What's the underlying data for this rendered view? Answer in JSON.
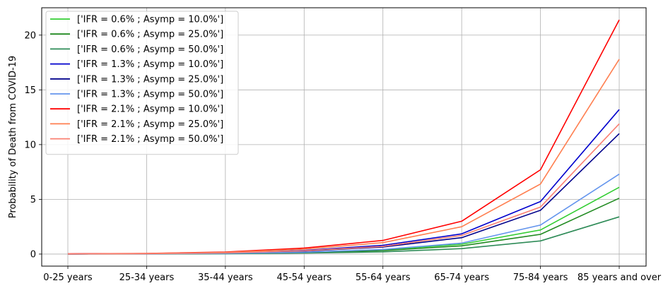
{
  "chart_data": {
    "type": "line",
    "title": "",
    "xlabel": "",
    "ylabel": "Probability of Death from COVID-19",
    "categories": [
      "0-25 years",
      "25-34 years",
      "35-44 years",
      "45-54 years",
      "55-64 years",
      "65-74 years",
      "75-84 years",
      "85 years and over"
    ],
    "ylim": [
      -1.1,
      22.5
    ],
    "yticks": [
      0,
      5,
      10,
      15,
      20
    ],
    "grid": true,
    "legend_position": "top-left",
    "series": [
      {
        "name": "['IFR = 0.6% ; Asymp = 10.0%']",
        "color": "#32cd32",
        "values": [
          0.01,
          0.02,
          0.06,
          0.16,
          0.38,
          0.9,
          2.2,
          6.1
        ]
      },
      {
        "name": "['IFR = 0.6% ; Asymp = 25.0%']",
        "color": "#228b22",
        "values": [
          0.01,
          0.02,
          0.05,
          0.13,
          0.32,
          0.75,
          1.8,
          5.1
        ]
      },
      {
        "name": "['IFR = 0.6% ; Asymp = 50.0%']",
        "color": "#2e8b57",
        "values": [
          0.0,
          0.01,
          0.03,
          0.09,
          0.2,
          0.5,
          1.2,
          3.4
        ]
      },
      {
        "name": "['IFR = 1.3% ; Asymp = 10.0%']",
        "color": "#0000cd",
        "values": [
          0.01,
          0.04,
          0.12,
          0.33,
          0.8,
          1.85,
          4.8,
          13.2
        ]
      },
      {
        "name": "['IFR = 1.3% ; Asymp = 25.0%']",
        "color": "#00008b",
        "values": [
          0.01,
          0.03,
          0.1,
          0.27,
          0.65,
          1.5,
          4.0,
          11.0
        ]
      },
      {
        "name": "['IFR = 1.3% ; Asymp = 50.0%']",
        "color": "#6495ed",
        "values": [
          0.0,
          0.02,
          0.06,
          0.17,
          0.42,
          1.0,
          2.65,
          7.3
        ]
      },
      {
        "name": "['IFR = 2.1% ; Asymp = 10.0%']",
        "color": "#ff0000",
        "values": [
          0.02,
          0.06,
          0.19,
          0.55,
          1.25,
          3.0,
          7.7,
          21.4
        ]
      },
      {
        "name": "['IFR = 2.1% ; Asymp = 25.0%']",
        "color": "#ff7f50",
        "values": [
          0.01,
          0.05,
          0.16,
          0.45,
          1.05,
          2.5,
          6.4,
          17.8
        ]
      },
      {
        "name": "['IFR = 2.1% ; Asymp = 50.0%']",
        "color": "#fa8072",
        "values": [
          0.01,
          0.03,
          0.11,
          0.3,
          0.7,
          1.7,
          4.3,
          11.9
        ]
      }
    ]
  }
}
